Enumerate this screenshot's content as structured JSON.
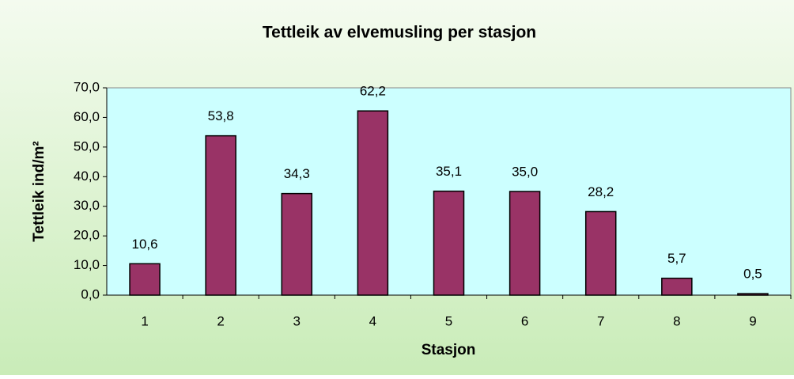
{
  "chart_data": {
    "type": "bar",
    "title": "Tettleik av elvemusling per stasjon",
    "xlabel": "Stasjon",
    "ylabel": "Tettleik ind/m²",
    "categories": [
      "1",
      "2",
      "3",
      "4",
      "5",
      "6",
      "7",
      "8",
      "9"
    ],
    "values": [
      10.6,
      53.8,
      34.3,
      62.2,
      35.1,
      35.0,
      28.2,
      5.7,
      0.5
    ],
    "value_labels": [
      "10,6",
      "53,8",
      "34,3",
      "62,2",
      "35,1",
      "35,0",
      "28,2",
      "5,7",
      "0,5"
    ],
    "color": "#993366",
    "ylim": [
      0,
      70
    ],
    "yticks": [
      {
        "value": 0,
        "label": "0,0"
      },
      {
        "value": 10,
        "label": "10,0"
      },
      {
        "value": 20,
        "label": "20,0"
      },
      {
        "value": 30,
        "label": "30,0"
      },
      {
        "value": 40,
        "label": "40,0"
      },
      {
        "value": 50,
        "label": "50,0"
      },
      {
        "value": 60,
        "label": "60,0"
      },
      {
        "value": 70,
        "label": "70,0"
      }
    ],
    "grid": false
  }
}
